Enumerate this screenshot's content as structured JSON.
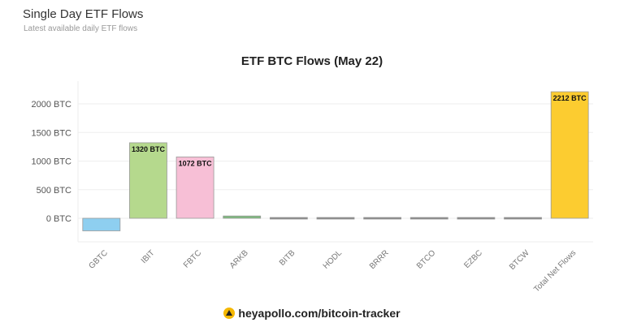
{
  "header": {
    "title": "Single Day ETF Flows",
    "subtitle": "Latest available daily ETF flows"
  },
  "footer": {
    "text": "heyapollo.com/bitcoin-tracker",
    "icon": "apollo-logo-icon"
  },
  "chart_data": {
    "type": "bar",
    "title": "ETF BTC Flows (May 22)",
    "xlabel": "",
    "ylabel": "",
    "categories": [
      "GBTC",
      "IBIT",
      "FBTC",
      "ARKB",
      "BITB",
      "HODL",
      "BRRR",
      "BTCO",
      "EZBC",
      "BTCW",
      "Total Net Flows"
    ],
    "values": [
      -220,
      1320,
      1072,
      40,
      0,
      0,
      0,
      0,
      0,
      0,
      2212
    ],
    "data_labels": [
      "",
      "1320 BTC",
      "1072 BTC",
      "",
      "",
      "",
      "",
      "",
      "",
      "",
      "2212 BTC"
    ],
    "colors": [
      "#8ecff0",
      "#b5d98d",
      "#f7bfd6",
      "#7dbb7d",
      "#888",
      "#888",
      "#888",
      "#888",
      "#888",
      "#888",
      "#fccc30"
    ],
    "yticks": [
      "0 BTC",
      "500 BTC",
      "1000 BTC",
      "1500 BTC",
      "2000 BTC"
    ],
    "ylim": [
      -420,
      2300
    ],
    "grid": true,
    "legend": "none"
  }
}
